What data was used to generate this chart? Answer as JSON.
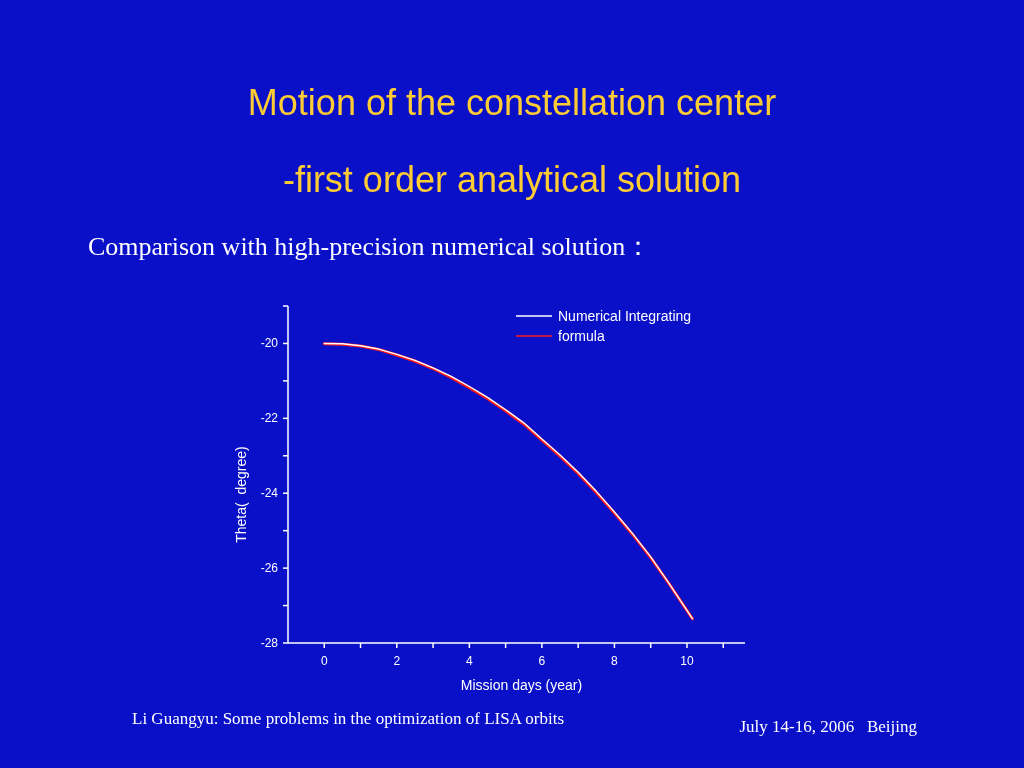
{
  "chart_data": {
    "type": "line",
    "title": "Motion of the constellation center\n-first order analytical solution",
    "subtitle": "Comparison with high-precision numerical solution：",
    "xlabel": "Mission days (year)",
    "ylabel": "Theta(  degree)",
    "annotations": [
      "Li Guangyu: Some problems in the optimization of LISA orbits",
      "July 14-16, 2006   Beijing"
    ],
    "x": [
      0,
      0.5,
      1,
      1.5,
      2,
      2.5,
      3,
      3.5,
      4,
      4.5,
      5,
      5.5,
      6,
      6.5,
      7,
      7.5,
      8,
      8.5,
      9,
      9.5,
      10.15
    ],
    "series": [
      {
        "name": "Numerical Integrating",
        "color": "#ffffff",
        "values": [
          -20.0,
          -20.01,
          -20.06,
          -20.15,
          -20.29,
          -20.45,
          -20.65,
          -20.88,
          -21.15,
          -21.44,
          -21.77,
          -22.12,
          -22.55,
          -22.98,
          -23.44,
          -23.95,
          -24.5,
          -25.08,
          -25.7,
          -26.4,
          -27.35
        ]
      },
      {
        "name": "formula",
        "color": "#ff1a1a",
        "values": [
          -20.01,
          -20.02,
          -20.07,
          -20.16,
          -20.31,
          -20.47,
          -20.67,
          -20.91,
          -21.18,
          -21.47,
          -21.8,
          -22.15,
          -22.58,
          -23.01,
          -23.47,
          -23.98,
          -24.53,
          -25.1,
          -25.72,
          -26.41,
          -27.35
        ]
      }
    ],
    "xlim": [
      -1,
      11.6
    ],
    "xticks": [
      0,
      {
        "value": 1,
        "label": null
      },
      2,
      {
        "value": 3,
        "label": null
      },
      4,
      {
        "value": 5,
        "label": null
      },
      6,
      {
        "value": 7,
        "label": null
      },
      8,
      {
        "value": 9,
        "label": null
      },
      10,
      {
        "value": 11,
        "label": null
      }
    ],
    "ylim": [
      -28,
      -19
    ],
    "yticks": [
      -28,
      {
        "value": -27,
        "label": null
      },
      -26,
      {
        "value": -25,
        "label": null
      },
      -24,
      {
        "value": -23,
        "label": null
      },
      -22,
      {
        "value": -21,
        "label": null
      },
      -20,
      {
        "value": -19,
        "label": null
      }
    ],
    "legend": "top right",
    "grid": false,
    "marker": "none",
    "line_style": "solid"
  }
}
